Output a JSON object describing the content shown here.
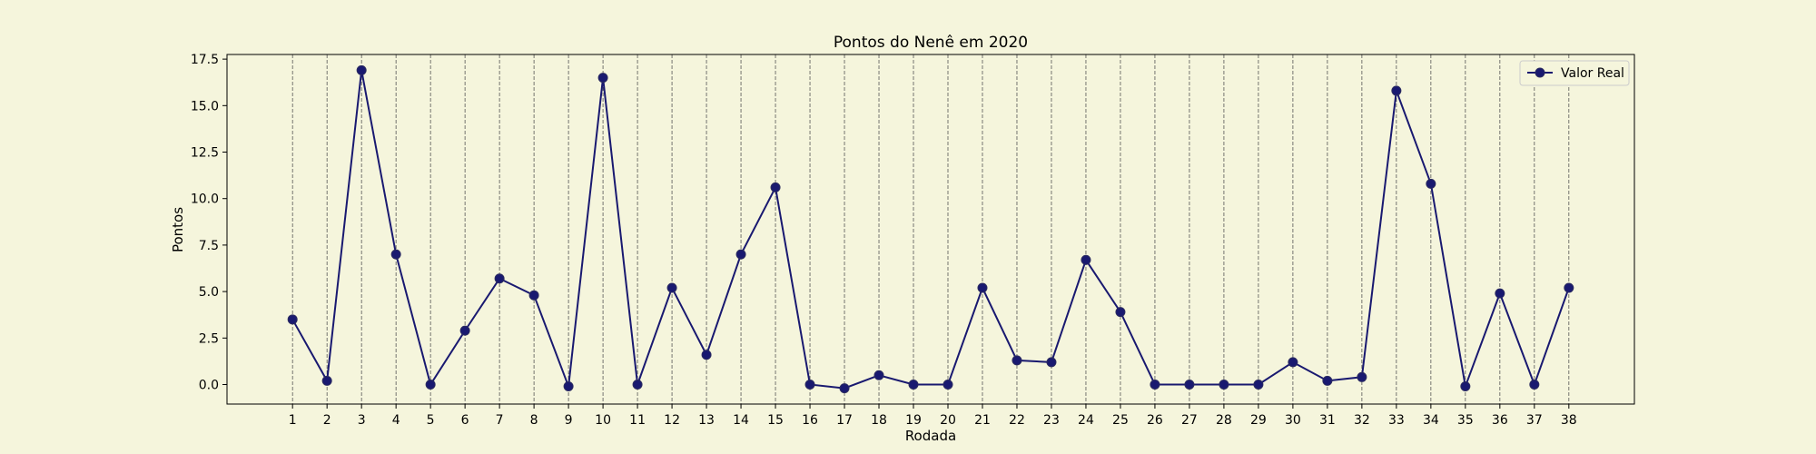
{
  "chart_data": {
    "type": "line",
    "title": "Pontos do Nenê em 2020",
    "xlabel": "Rodada",
    "ylabel": "Pontos",
    "x": [
      1,
      2,
      3,
      4,
      5,
      6,
      7,
      8,
      9,
      10,
      11,
      12,
      13,
      14,
      15,
      16,
      17,
      18,
      19,
      20,
      21,
      22,
      23,
      24,
      25,
      26,
      27,
      28,
      29,
      30,
      31,
      32,
      33,
      34,
      35,
      36,
      37,
      38
    ],
    "series": [
      {
        "name": "Valor Real",
        "color": "#191970",
        "values": [
          3.5,
          0.2,
          16.9,
          7.0,
          0.0,
          2.9,
          5.7,
          4.8,
          -0.1,
          16.5,
          0.0,
          5.2,
          1.6,
          7.0,
          10.6,
          0.0,
          -0.2,
          0.5,
          0.0,
          0.0,
          5.2,
          1.3,
          1.2,
          6.7,
          3.9,
          0.0,
          0.0,
          0.0,
          0.0,
          1.2,
          0.2,
          0.4,
          15.8,
          10.8,
          -0.1,
          4.9,
          0.0,
          5.2
        ]
      }
    ],
    "ylim": [
      -1.05,
      17.75
    ],
    "xlim": [
      -0.9,
      39.9
    ],
    "yticks": [
      0.0,
      2.5,
      5.0,
      7.5,
      10.0,
      12.5,
      15.0,
      17.5
    ],
    "vertical_grid": true,
    "horizontal_grid": false,
    "legend_position": "top-right",
    "background": "#f5f5dc"
  }
}
